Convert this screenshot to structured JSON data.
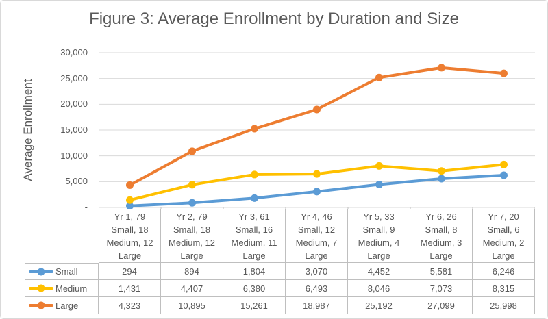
{
  "title": "Figure 3: Average Enrollment by Duration and Size",
  "y_axis": {
    "title": "Average Enrollment",
    "ticks": [
      {
        "value": 30000,
        "label": "30,000"
      },
      {
        "value": 25000,
        "label": "25,000"
      },
      {
        "value": 20000,
        "label": "20,000"
      },
      {
        "value": 15000,
        "label": "15,000"
      },
      {
        "value": 10000,
        "label": "10,000"
      },
      {
        "value": 5000,
        "label": "5,000"
      },
      {
        "value": 0,
        "label": "-"
      }
    ]
  },
  "chart_data": {
    "type": "line",
    "title": "Figure 3: Average Enrollment by Duration and Size",
    "xlabel": "",
    "ylabel": "Average Enrollment",
    "ylim": [
      0,
      30000
    ],
    "ytick_step": 5000,
    "grid": true,
    "legend_position": "data-table-left-column",
    "categories": [
      [
        "Yr 1, 79",
        "Small, 18",
        "Medium, 12",
        "Large"
      ],
      [
        "Yr 2, 79",
        "Small, 18",
        "Medium, 12",
        "Large"
      ],
      [
        "Yr 3, 61",
        "Small, 16",
        "Medium, 11",
        "Large"
      ],
      [
        "Yr 4, 46",
        "Small, 12",
        "Medium, 7",
        "Large"
      ],
      [
        "Yr 5, 33",
        "Small, 9",
        "Medium, 4",
        "Large"
      ],
      [
        "Yr 6, 26",
        "Small, 8",
        "Medium, 3",
        "Large"
      ],
      [
        "Yr 7, 20",
        "Small, 6",
        "Medium, 2",
        "Large"
      ]
    ],
    "series": [
      {
        "name": "Small",
        "color": "#5B9BD5",
        "values": [
          294,
          894,
          1804,
          3070,
          4452,
          5581,
          6246
        ]
      },
      {
        "name": "Medium",
        "color": "#FFC000",
        "values": [
          1431,
          4407,
          6380,
          6493,
          8046,
          7073,
          8315
        ]
      },
      {
        "name": "Large",
        "color": "#ED7D31",
        "values": [
          4323,
          10895,
          15261,
          18987,
          25192,
          27099,
          25998
        ]
      }
    ]
  },
  "colors": {
    "text": "#595959",
    "gridline": "#D9D9D9",
    "axis_tick": "#BFBFBF",
    "table_border": "#BFBFBF",
    "figure_border": "#D9D9D9"
  }
}
